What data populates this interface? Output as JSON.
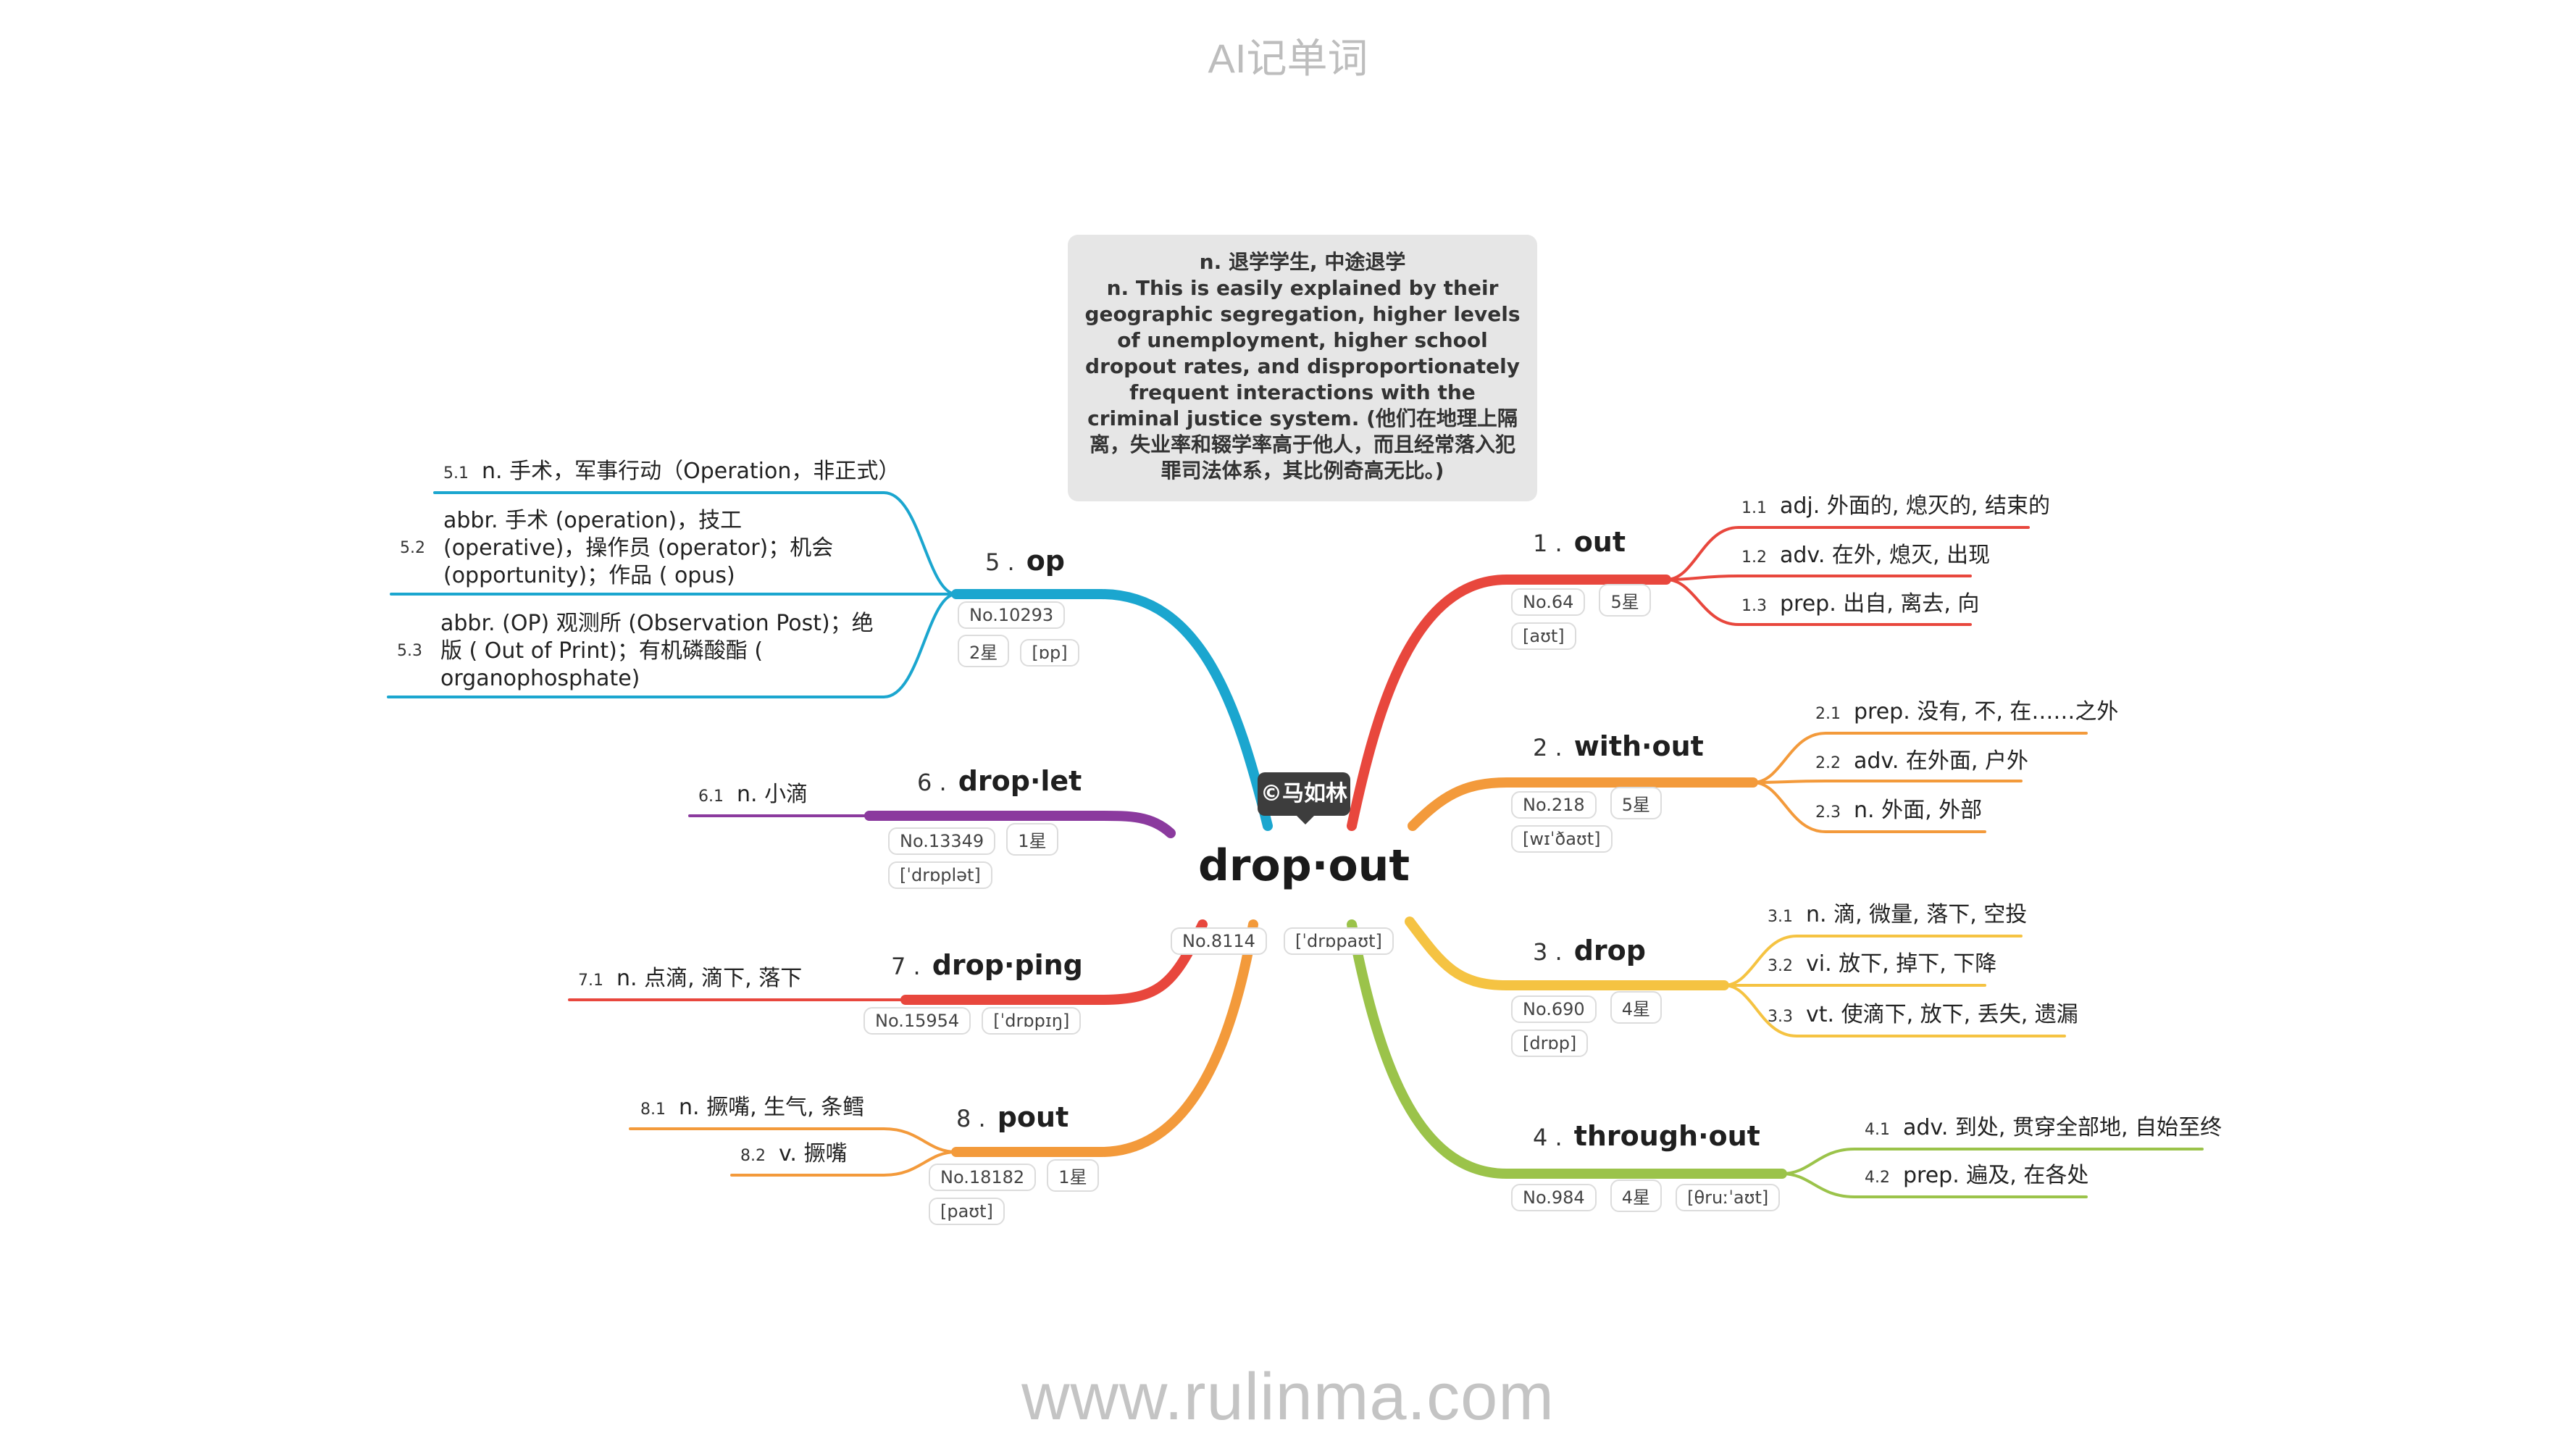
{
  "header": "AI记单词",
  "footer": "www.rulinma.com",
  "central": {
    "word": "drop·out",
    "rank": "No.8114",
    "phonetic": "[ˈdrɒpaʊt]"
  },
  "author": "©马如林",
  "note": {
    "line1": "n. 退学学生, 中途退学",
    "line2": "n. This is easily explained by their geographic segregation, higher levels of unemployment, higher school dropout rates, and disproportionately frequent interactions with the criminal justice system. (他们在地理上隔离，失业率和辍学率高于他人，而且经常落入犯罪司法体系，其比例奇高无比。)"
  },
  "branches": [
    {
      "num": "1 .",
      "word": "out",
      "rank": "No.64",
      "stars": "5星",
      "phonetic": "[aʊt]",
      "color": "#e8473d",
      "senses": [
        {
          "n": "1.1",
          "text": "adj. 外面的, 熄灭的, 结束的"
        },
        {
          "n": "1.2",
          "text": "adv. 在外, 熄灭, 出现"
        },
        {
          "n": "1.3",
          "text": "prep. 出自, 离去, 向"
        }
      ]
    },
    {
      "num": "2 .",
      "word": "with·out",
      "rank": "No.218",
      "stars": "5星",
      "phonetic": "[wɪˈðaʊt]",
      "color": "#f39a3b",
      "senses": [
        {
          "n": "2.1",
          "text": "prep. 没有, 不, 在……之外"
        },
        {
          "n": "2.2",
          "text": "adv. 在外面, 户外"
        },
        {
          "n": "2.3",
          "text": "n. 外面, 外部"
        }
      ]
    },
    {
      "num": "3 .",
      "word": "drop",
      "rank": "No.690",
      "stars": "4星",
      "phonetic": "[drɒp]",
      "color": "#f5c342",
      "senses": [
        {
          "n": "3.1",
          "text": "n. 滴, 微量, 落下, 空投"
        },
        {
          "n": "3.2",
          "text": "vi. 放下, 掉下, 下降"
        },
        {
          "n": "3.3",
          "text": "vt. 使滴下, 放下, 丢失, 遗漏"
        }
      ]
    },
    {
      "num": "4 .",
      "word": "through·out",
      "rank": "No.984",
      "stars": "4星",
      "phonetic": "[θruːˈaʊt]",
      "color": "#9bc34a",
      "senses": [
        {
          "n": "4.1",
          "text": "adv. 到处, 贯穿全部地, 自始至终"
        },
        {
          "n": "4.2",
          "text": "prep. 遍及, 在各处"
        }
      ]
    },
    {
      "num": "5 .",
      "word": "op",
      "rank": "No.10293",
      "stars": "2星",
      "phonetic": "[ɒp]",
      "color": "#1ba6cf",
      "senses": [
        {
          "n": "5.1",
          "text": "n. 手术，军事行动（Operation，非正式）"
        },
        {
          "n": "5.2",
          "text": "abbr. 手术 (operation)，技工 (operative)，操作员 (operator)；机会 (opportunity)；作品 ( opus)"
        },
        {
          "n": "5.3",
          "text": "abbr. (OP) 观测所 (Observation Post)；绝版 ( Out of Print)；有机磷酸酯 ( organophosphate)"
        }
      ]
    },
    {
      "num": "6 .",
      "word": "drop·let",
      "rank": "No.13349",
      "stars": "1星",
      "phonetic": "[ˈdrɒplət]",
      "color": "#8b3a9e",
      "senses": [
        {
          "n": "6.1",
          "text": "n. 小滴"
        }
      ]
    },
    {
      "num": "7 .",
      "word": "drop·ping",
      "rank": "No.15954",
      "phonetic": "[ˈdrɒpɪŋ]",
      "color": "#e8473d",
      "senses": [
        {
          "n": "7.1",
          "text": "n. 点滴, 滴下, 落下"
        }
      ]
    },
    {
      "num": "8 .",
      "word": "pout",
      "rank": "No.18182",
      "stars": "1星",
      "phonetic": "[paʊt]",
      "color": "#f39a3b",
      "senses": [
        {
          "n": "8.1",
          "text": "n. 撅嘴, 生气, 条鳕"
        },
        {
          "n": "8.2",
          "text": "v. 撅嘴"
        }
      ]
    }
  ]
}
